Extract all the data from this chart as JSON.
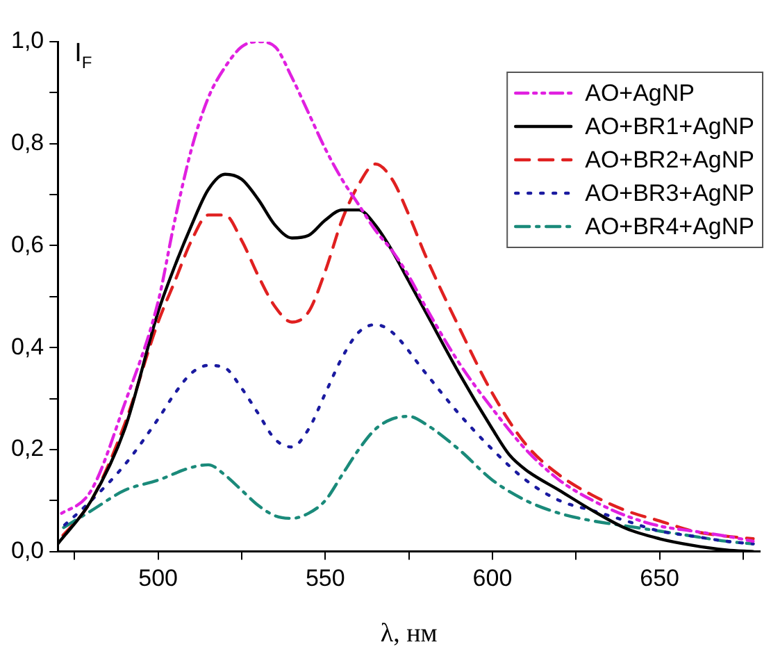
{
  "chart_data": {
    "type": "line",
    "xlabel": "λ, нм",
    "ylabel": "I$_{F}$",
    "xlim": [
      470,
      680
    ],
    "ylim": [
      0,
      1.0
    ],
    "xticks": [
      {
        "value": 475,
        "label": null
      },
      500,
      {
        "value": 525,
        "label": null
      },
      550,
      {
        "value": 575,
        "label": null
      },
      600,
      {
        "value": 625,
        "label": null
      },
      650,
      {
        "value": 675,
        "label": null
      }
    ],
    "yticks": [
      {
        "value": 0,
        "label": "0,0"
      },
      {
        "value": 0.1,
        "label": null
      },
      {
        "value": 0.2,
        "label": "0,2"
      },
      {
        "value": 0.3,
        "label": null
      },
      {
        "value": 0.4,
        "label": "0,4"
      },
      {
        "value": 0.5,
        "label": null
      },
      {
        "value": 0.6,
        "label": "0,6"
      },
      {
        "value": 0.7,
        "label": null
      },
      {
        "value": 0.8,
        "label": "0,8"
      },
      {
        "value": 0.9,
        "label": null
      },
      {
        "value": 1.0,
        "label": "1,0"
      }
    ],
    "grid": false,
    "legend": "top right",
    "marker": "none",
    "series": [
      {
        "name": "AO+AgNP",
        "color": "#e020e0",
        "line_style": "dashdotdot",
        "x": [
          470,
          480,
          490,
          500,
          505,
          510,
          515,
          520,
          525,
          530,
          535,
          540,
          545,
          550,
          555,
          560,
          565,
          570,
          575,
          580,
          590,
          600,
          610,
          620,
          630,
          640,
          650,
          660,
          670,
          678
        ],
        "values": [
          0.07,
          0.12,
          0.29,
          0.49,
          0.65,
          0.79,
          0.89,
          0.95,
          0.99,
          1.0,
          0.99,
          0.93,
          0.86,
          0.79,
          0.73,
          0.68,
          0.63,
          0.59,
          0.54,
          0.48,
          0.37,
          0.28,
          0.2,
          0.14,
          0.1,
          0.07,
          0.05,
          0.04,
          0.03,
          0.02
        ]
      },
      {
        "name": "AO+BR1+AgNP",
        "color": "#000000",
        "line_style": "solid",
        "x": [
          470,
          480,
          490,
          500,
          505,
          510,
          515,
          520,
          525,
          530,
          535,
          540,
          545,
          550,
          555,
          560,
          565,
          570,
          575,
          580,
          590,
          600,
          605,
          610,
          620,
          630,
          640,
          650,
          660,
          670,
          678
        ],
        "values": [
          0.015,
          0.1,
          0.24,
          0.47,
          0.56,
          0.64,
          0.71,
          0.74,
          0.73,
          0.69,
          0.64,
          0.615,
          0.62,
          0.65,
          0.67,
          0.67,
          0.64,
          0.59,
          0.53,
          0.47,
          0.35,
          0.24,
          0.19,
          0.16,
          0.12,
          0.08,
          0.045,
          0.025,
          0.012,
          0.003,
          0
        ]
      },
      {
        "name": "AO+BR2+AgNP",
        "color": "#e02020",
        "line_style": "dashed",
        "x": [
          470,
          480,
          490,
          500,
          505,
          510,
          515,
          520,
          525,
          530,
          535,
          540,
          545,
          550,
          555,
          560,
          565,
          570,
          575,
          580,
          590,
          600,
          610,
          620,
          630,
          640,
          650,
          660,
          670,
          678
        ],
        "values": [
          0.02,
          0.1,
          0.25,
          0.45,
          0.53,
          0.61,
          0.66,
          0.66,
          0.61,
          0.54,
          0.48,
          0.45,
          0.47,
          0.55,
          0.65,
          0.72,
          0.76,
          0.73,
          0.66,
          0.58,
          0.44,
          0.31,
          0.21,
          0.15,
          0.11,
          0.08,
          0.06,
          0.04,
          0.03,
          0.025
        ]
      },
      {
        "name": "AO+BR3+AgNP",
        "color": "#1a1aa0",
        "line_style": "dotted",
        "x": [
          470,
          480,
          490,
          500,
          505,
          510,
          515,
          520,
          525,
          530,
          535,
          540,
          545,
          550,
          555,
          560,
          565,
          570,
          580,
          590,
          600,
          610,
          620,
          630,
          640,
          650,
          660,
          670,
          678
        ],
        "values": [
          0.04,
          0.1,
          0.17,
          0.26,
          0.31,
          0.35,
          0.365,
          0.36,
          0.32,
          0.27,
          0.22,
          0.205,
          0.24,
          0.31,
          0.38,
          0.43,
          0.445,
          0.43,
          0.35,
          0.27,
          0.2,
          0.14,
          0.1,
          0.08,
          0.06,
          0.04,
          0.03,
          0.02,
          0.015
        ]
      },
      {
        "name": "AO+BR4+AgNP",
        "color": "#1a8a7a",
        "line_style": "dashdot",
        "x": [
          470,
          480,
          490,
          500,
          510,
          515,
          520,
          525,
          530,
          535,
          540,
          545,
          550,
          555,
          560,
          565,
          570,
          575,
          580,
          590,
          600,
          610,
          620,
          630,
          640,
          650,
          660,
          670,
          678
        ],
        "values": [
          0.04,
          0.08,
          0.12,
          0.14,
          0.165,
          0.17,
          0.15,
          0.12,
          0.09,
          0.07,
          0.065,
          0.075,
          0.1,
          0.15,
          0.2,
          0.24,
          0.26,
          0.265,
          0.25,
          0.2,
          0.14,
          0.1,
          0.075,
          0.06,
          0.05,
          0.04,
          0.03,
          0.02,
          0.015
        ]
      }
    ]
  }
}
